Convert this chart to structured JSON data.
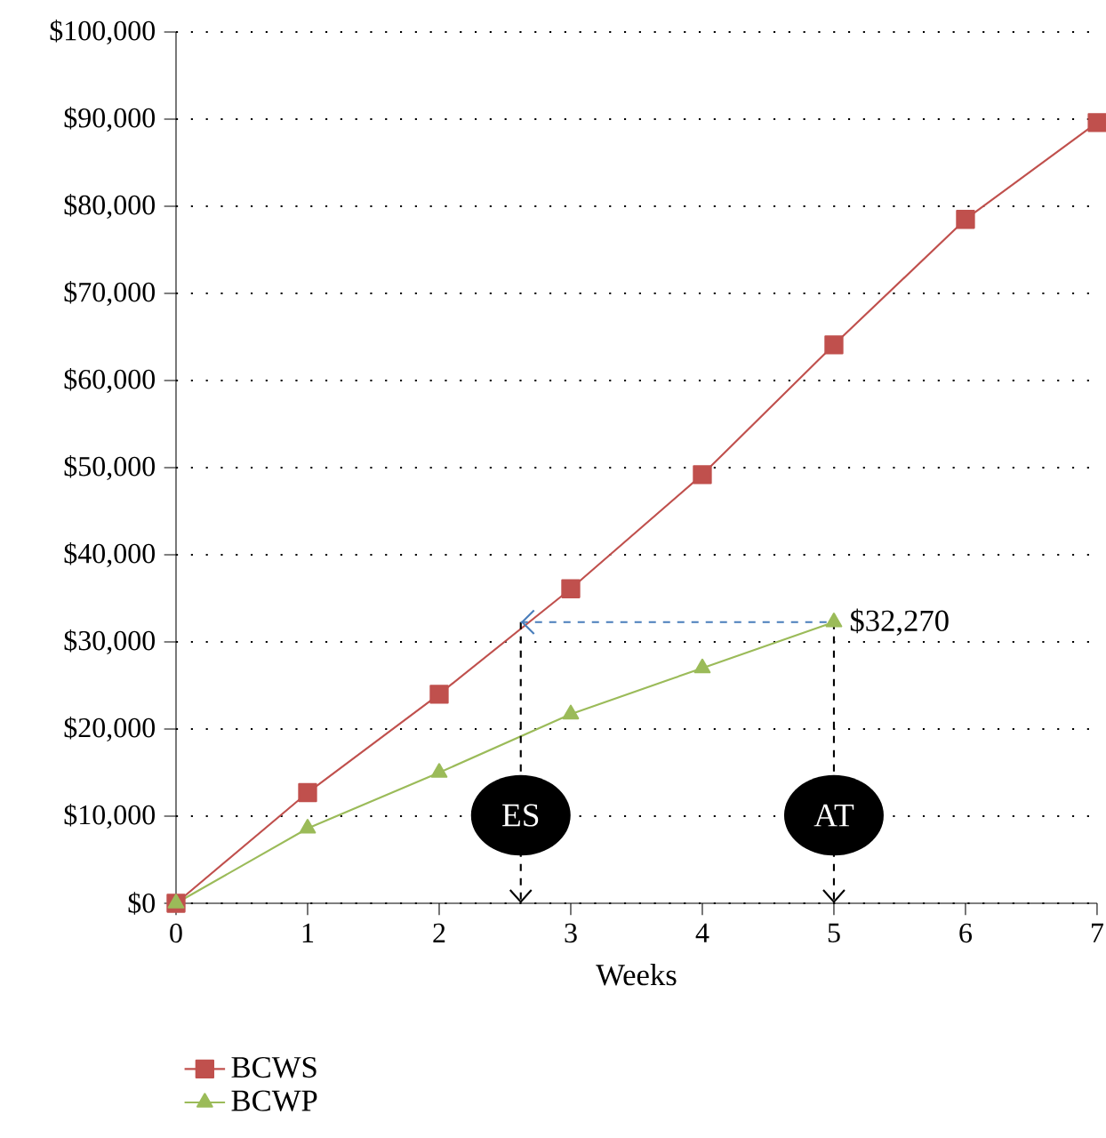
{
  "chart_data": {
    "type": "line",
    "xlabel": "Weeks",
    "x": [
      0,
      1,
      2,
      3,
      4,
      5,
      6,
      7
    ],
    "series": [
      {
        "name": "BCWS",
        "color": "#c0504d",
        "marker": "square",
        "values": [
          0,
          12700,
          24000,
          36100,
          49200,
          64100,
          78500,
          89600
        ]
      },
      {
        "name": "BCWP",
        "color": "#9bbb59",
        "marker": "triangle",
        "values": [
          0,
          8600,
          15000,
          21700,
          27000,
          32270,
          null,
          null
        ]
      }
    ],
    "xlim": [
      0,
      7
    ],
    "xticks": [
      0,
      1,
      2,
      3,
      4,
      5,
      6,
      7
    ],
    "ylim": [
      0,
      100000
    ],
    "yticks": [
      {
        "value": 0,
        "label": "$0"
      },
      {
        "value": 10000,
        "label": "$10,000"
      },
      {
        "value": 20000,
        "label": "$20,000"
      },
      {
        "value": 30000,
        "label": "$30,000"
      },
      {
        "value": 40000,
        "label": "$40,000"
      },
      {
        "value": 50000,
        "label": "$50,000"
      },
      {
        "value": 60000,
        "label": "$60,000"
      },
      {
        "value": 70000,
        "label": "$70,000"
      },
      {
        "value": 80000,
        "label": "$80,000"
      },
      {
        "value": 90000,
        "label": "$90,000"
      },
      {
        "value": 100000,
        "label": "$100,000"
      }
    ],
    "grid": "y",
    "legend": "bottom left",
    "line_style": "solid",
    "ref_lines": [
      {
        "axis": "x",
        "value": 2.62,
        "label": "ES",
        "color": "#000000",
        "line_style": "dashed"
      },
      {
        "axis": "x",
        "value": 5,
        "label": "AT",
        "color": "#000000",
        "line_style": "dashed"
      },
      {
        "axis": "y",
        "value": 32270,
        "color": "#4a7ebb",
        "line_style": "dashed"
      }
    ],
    "annotations": [
      {
        "text": "$32,270",
        "x": 5,
        "y": 32270
      }
    ]
  }
}
